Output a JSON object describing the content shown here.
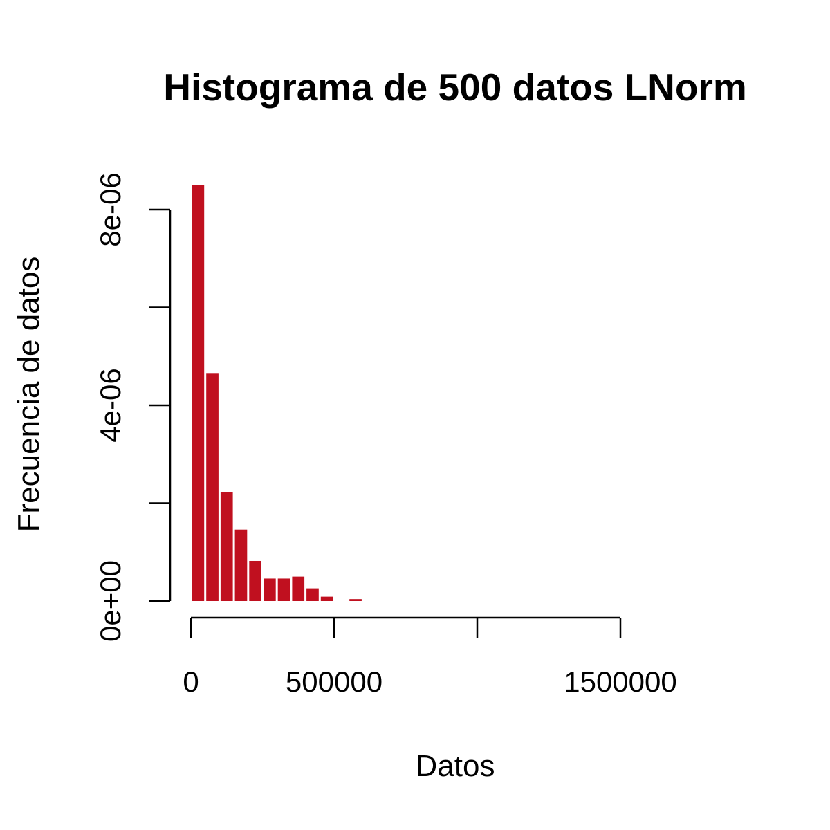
{
  "chart_data": {
    "type": "bar",
    "title": "Histograma de 500 datos LNorm",
    "xlabel": "Datos",
    "ylabel": "Frecuencia de datos",
    "bar_color": "#c0101f",
    "background_color": "#ffffff",
    "grid": false,
    "legend": "none",
    "bin_width": 50000,
    "xlim": [
      0,
      1500000
    ],
    "ylim": [
      0,
      8.5e-06
    ],
    "x_ticks": [
      {
        "value": 0,
        "label": "0"
      },
      {
        "value": 500000,
        "label": "500000"
      },
      {
        "value": 1000000,
        "label": ""
      },
      {
        "value": 1500000,
        "label": "1500000"
      }
    ],
    "y_ticks": [
      {
        "value": 0,
        "label": "0e+00"
      },
      {
        "value": 2e-06,
        "label": ""
      },
      {
        "value": 4e-06,
        "label": "4e-06"
      },
      {
        "value": 6e-06,
        "label": ""
      },
      {
        "value": 8e-06,
        "label": "8e-06"
      }
    ],
    "bins": [
      {
        "x0": 0,
        "x1": 50000,
        "density": 8.5e-06
      },
      {
        "x0": 50000,
        "x1": 100000,
        "density": 4.66e-06
      },
      {
        "x0": 100000,
        "x1": 150000,
        "density": 2.22e-06
      },
      {
        "x0": 150000,
        "x1": 200000,
        "density": 1.46e-06
      },
      {
        "x0": 200000,
        "x1": 250000,
        "density": 8.2e-07
      },
      {
        "x0": 250000,
        "x1": 300000,
        "density": 4.6e-07
      },
      {
        "x0": 300000,
        "x1": 350000,
        "density": 4.6e-07
      },
      {
        "x0": 350000,
        "x1": 400000,
        "density": 5e-07
      },
      {
        "x0": 400000,
        "x1": 450000,
        "density": 2.6e-07
      },
      {
        "x0": 450000,
        "x1": 500000,
        "density": 9e-08
      },
      {
        "x0": 500000,
        "x1": 550000,
        "density": 0.0
      },
      {
        "x0": 550000,
        "x1": 600000,
        "density": 4e-08
      }
    ]
  }
}
